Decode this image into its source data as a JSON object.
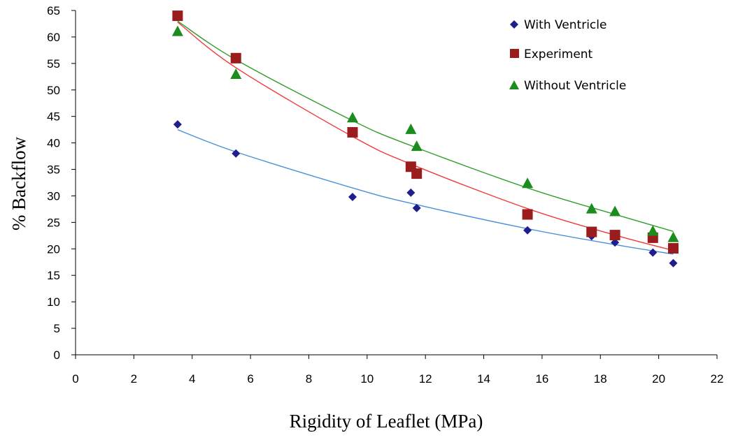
{
  "chart_data": {
    "type": "scatter",
    "xlabel": "Rigidity of Leaflet (MPa)",
    "ylabel": "% Backflow",
    "xlim": [
      0,
      22
    ],
    "ylim": [
      0,
      65
    ],
    "xticks": [
      0,
      2,
      4,
      6,
      8,
      10,
      12,
      14,
      16,
      18,
      20,
      22
    ],
    "yticks": [
      0,
      5,
      10,
      15,
      20,
      25,
      30,
      35,
      40,
      45,
      50,
      55,
      60,
      65
    ],
    "grid": false,
    "legend_position": "top-right",
    "series": [
      {
        "name": "With Ventricle",
        "marker": "diamond",
        "marker_color": "#1F1E8C",
        "trendline_color": "#4A90D9",
        "points": [
          [
            3.5,
            43.5
          ],
          [
            5.5,
            38
          ],
          [
            9.5,
            29.8
          ],
          [
            11.5,
            30.6
          ],
          [
            11.7,
            27.7
          ],
          [
            15.5,
            23.5
          ],
          [
            17.7,
            22.4
          ],
          [
            18.5,
            21.2
          ],
          [
            19.8,
            19.3
          ],
          [
            20.5,
            17.3
          ]
        ],
        "trendline": [
          [
            3.5,
            42.5
          ],
          [
            5.5,
            38.3
          ],
          [
            9.5,
            31.5
          ],
          [
            11.5,
            28.6
          ],
          [
            15.5,
            23.8
          ],
          [
            18.5,
            20.8
          ],
          [
            20.5,
            19
          ]
        ]
      },
      {
        "name": "Experiment",
        "marker": "square",
        "marker_color": "#9B1C1C",
        "trendline_color": "#F23A3A",
        "points": [
          [
            3.5,
            64
          ],
          [
            5.5,
            56
          ],
          [
            9.5,
            42
          ],
          [
            11.5,
            35.5
          ],
          [
            11.7,
            34.2
          ],
          [
            15.5,
            26.5
          ],
          [
            17.7,
            23.2
          ],
          [
            18.5,
            22.6
          ],
          [
            19.8,
            22.1
          ],
          [
            20.5,
            20.1
          ]
        ],
        "trendline": [
          [
            3.5,
            62.8
          ],
          [
            5.5,
            54.2
          ],
          [
            9.5,
            41.2
          ],
          [
            11.5,
            36
          ],
          [
            15.5,
            27.6
          ],
          [
            18.5,
            22.6
          ],
          [
            20.5,
            19.7
          ]
        ]
      },
      {
        "name": "Without Ventricle",
        "marker": "triangle",
        "marker_color": "#1C8C1C",
        "trendline_color": "#2E9E2E",
        "points": [
          [
            3.5,
            61.1
          ],
          [
            5.5,
            53
          ],
          [
            9.5,
            44.8
          ],
          [
            11.5,
            42.6
          ],
          [
            11.7,
            39.4
          ],
          [
            15.5,
            32.4
          ],
          [
            17.7,
            27.6
          ],
          [
            18.5,
            27.1
          ],
          [
            19.8,
            23.4
          ],
          [
            20.5,
            22.2
          ]
        ],
        "trendline": [
          [
            3.5,
            63
          ],
          [
            5.5,
            55.7
          ],
          [
            9.5,
            44.2
          ],
          [
            11.5,
            39.5
          ],
          [
            15.5,
            31.5
          ],
          [
            18.5,
            26.5
          ],
          [
            20.5,
            23.3
          ]
        ]
      }
    ]
  }
}
